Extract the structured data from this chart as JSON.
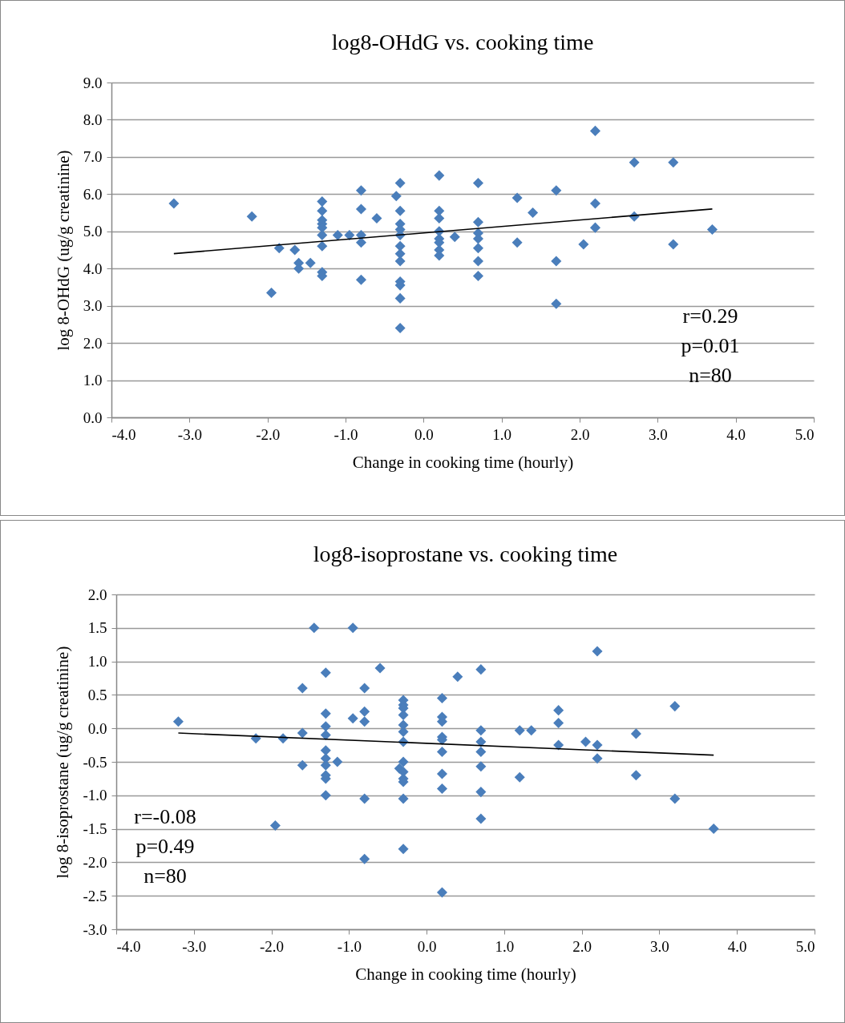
{
  "chart_data": [
    {
      "type": "scatter",
      "title": "log8-OHdG vs. cooking time",
      "xlabel": "Change in cooking time (hourly)",
      "ylabel": "log 8-OHdG (ug/g creatinine)",
      "xlim": [
        -4,
        5
      ],
      "xticks": [
        {
          "value": -4,
          "label": "-4.0"
        },
        {
          "value": -3,
          "label": "-3.0"
        },
        {
          "value": -2,
          "label": "-2.0"
        },
        {
          "value": -1,
          "label": "-1.0"
        },
        {
          "value": 0,
          "label": "0.0"
        },
        {
          "value": 1,
          "label": "1.0"
        },
        {
          "value": 2,
          "label": "2.0"
        },
        {
          "value": 3,
          "label": "3.0"
        },
        {
          "value": 4,
          "label": "4.0"
        },
        {
          "value": 5,
          "label": "5.0"
        }
      ],
      "ylim": [
        0,
        9
      ],
      "yticks": [
        {
          "value": 0,
          "label": "0.0"
        },
        {
          "value": 1,
          "label": "1.0"
        },
        {
          "value": 2,
          "label": "2.0"
        },
        {
          "value": 3,
          "label": "3.0"
        },
        {
          "value": 4,
          "label": "4.0"
        },
        {
          "value": 5,
          "label": "5.0"
        },
        {
          "value": 6,
          "label": "6.0"
        },
        {
          "value": 7,
          "label": "7.0"
        },
        {
          "value": 8,
          "label": "8.0"
        },
        {
          "value": 9,
          "label": "9.0"
        }
      ],
      "grid": "y",
      "annotations": [
        "r=0.29",
        "p=0.01",
        "n=80"
      ],
      "series": [
        {
          "marker": "diamond",
          "color": "#4a7ebb",
          "x": [
            -3.2,
            -2.2,
            -1.85,
            -1.95,
            -1.65,
            -1.6,
            -1.6,
            -1.45,
            -1.3,
            -1.3,
            -1.3,
            -1.3,
            -1.3,
            -1.3,
            -1.3,
            -1.3,
            -1.3,
            -1.1,
            -0.95,
            -0.8,
            -0.8,
            -0.8,
            -0.8,
            -0.8,
            -0.6,
            -0.35,
            -0.3,
            -0.3,
            -0.3,
            -0.3,
            -0.3,
            -0.3,
            -0.3,
            -0.3,
            -0.3,
            -0.3,
            -0.3,
            -0.3,
            0.2,
            0.2,
            0.2,
            0.2,
            0.2,
            0.2,
            0.2,
            0.2,
            0.4,
            0.7,
            0.7,
            0.7,
            0.7,
            0.7,
            0.7,
            0.7,
            1.2,
            1.2,
            1.4,
            1.7,
            1.7,
            1.7,
            2.05,
            2.2,
            2.2,
            2.2,
            2.7,
            2.7,
            3.2,
            3.2,
            3.7
          ],
          "values": [
            5.75,
            5.4,
            4.55,
            3.35,
            4.5,
            4.15,
            4.0,
            4.15,
            5.8,
            5.55,
            5.3,
            5.2,
            5.1,
            4.9,
            4.6,
            3.9,
            3.8,
            4.9,
            4.9,
            6.1,
            5.6,
            4.9,
            4.7,
            3.7,
            5.35,
            5.95,
            6.3,
            5.55,
            5.2,
            5.05,
            4.9,
            4.6,
            4.4,
            4.2,
            3.65,
            3.55,
            3.2,
            2.4,
            6.5,
            5.55,
            5.35,
            5.0,
            4.8,
            4.7,
            4.5,
            4.35,
            4.85,
            6.3,
            5.25,
            4.95,
            4.8,
            4.55,
            4.2,
            3.8,
            5.9,
            4.7,
            5.5,
            6.1,
            4.2,
            3.05,
            4.65,
            7.7,
            5.75,
            5.1,
            6.85,
            5.4,
            6.85,
            4.65,
            5.05
          ]
        },
        {
          "type": "line",
          "marker": "none",
          "color": "#000000",
          "x": [
            -3.2,
            3.7
          ],
          "values": [
            4.4,
            5.6
          ]
        }
      ]
    },
    {
      "type": "scatter",
      "title": "log8-isoprostane vs. cooking time",
      "xlabel": "Change in cooking time (hourly)",
      "ylabel": "log 8-isoprostane (ug/g creatinine)",
      "xlim": [
        -4,
        5
      ],
      "xticks": [
        {
          "value": -4,
          "label": "-4.0"
        },
        {
          "value": -3,
          "label": "-3.0"
        },
        {
          "value": -2,
          "label": "-2.0"
        },
        {
          "value": -1,
          "label": "-1.0"
        },
        {
          "value": 0,
          "label": "0.0"
        },
        {
          "value": 1,
          "label": "1.0"
        },
        {
          "value": 2,
          "label": "2.0"
        },
        {
          "value": 3,
          "label": "3.0"
        },
        {
          "value": 4,
          "label": "4.0"
        },
        {
          "value": 5,
          "label": "5.0"
        }
      ],
      "ylim": [
        -3,
        2
      ],
      "yticks": [
        {
          "value": -3,
          "label": "-3.0"
        },
        {
          "value": -2.5,
          "label": "-2.5"
        },
        {
          "value": -2,
          "label": "-2.0"
        },
        {
          "value": -1.5,
          "label": "-1.5"
        },
        {
          "value": -1,
          "label": "-1.0"
        },
        {
          "value": -0.5,
          "label": "-0.5"
        },
        {
          "value": 0,
          "label": "0.0"
        },
        {
          "value": 0.5,
          "label": "0.5"
        },
        {
          "value": 1,
          "label": "1.0"
        },
        {
          "value": 1.5,
          "label": "1.5"
        },
        {
          "value": 2,
          "label": "2.0"
        }
      ],
      "grid": "y",
      "annotations": [
        "r=-0.08",
        "p=0.49",
        "n=80"
      ],
      "series": [
        {
          "marker": "diamond",
          "color": "#4a7ebb",
          "x": [
            -3.2,
            -2.2,
            -1.85,
            -1.95,
            -1.6,
            -1.6,
            -1.6,
            -1.45,
            -1.3,
            -1.3,
            -1.3,
            -1.3,
            -1.3,
            -1.3,
            -1.3,
            -1.3,
            -1.3,
            -1.3,
            -1.15,
            -0.95,
            -0.95,
            -0.8,
            -0.8,
            -0.8,
            -0.8,
            -0.8,
            -0.6,
            -0.35,
            -0.3,
            -0.3,
            -0.3,
            -0.3,
            -0.3,
            -0.3,
            -0.3,
            -0.3,
            -0.3,
            -0.3,
            -0.3,
            -0.3,
            -0.3,
            0.2,
            0.2,
            0.2,
            0.2,
            0.2,
            0.2,
            0.2,
            0.2,
            0.2,
            0.4,
            0.7,
            0.7,
            0.7,
            0.7,
            0.7,
            0.7,
            0.7,
            1.2,
            1.2,
            1.35,
            1.7,
            1.7,
            1.7,
            2.05,
            2.2,
            2.2,
            2.2,
            2.7,
            2.7,
            3.2,
            3.2,
            3.7
          ],
          "values": [
            0.1,
            -0.15,
            -0.15,
            -1.45,
            0.6,
            -0.07,
            -0.55,
            1.5,
            0.83,
            0.22,
            0.03,
            -0.1,
            -0.33,
            -0.45,
            -0.55,
            -0.7,
            -0.75,
            -1.0,
            -0.5,
            1.5,
            0.15,
            0.6,
            0.25,
            0.1,
            -1.05,
            -1.95,
            0.9,
            -0.6,
            0.42,
            0.35,
            0.3,
            0.2,
            0.05,
            -0.05,
            -0.2,
            -0.5,
            -0.65,
            -0.75,
            -0.8,
            -1.05,
            -1.8,
            0.45,
            0.17,
            0.1,
            -0.13,
            -0.17,
            -0.35,
            -0.68,
            -0.9,
            -2.45,
            0.77,
            0.88,
            -0.03,
            -0.2,
            -0.35,
            -0.57,
            -0.95,
            -1.35,
            -0.03,
            -0.73,
            -0.03,
            0.27,
            0.08,
            -0.25,
            -0.2,
            1.15,
            -0.25,
            -0.45,
            -0.08,
            -0.7,
            0.33,
            -1.05,
            -1.5
          ]
        },
        {
          "type": "line",
          "marker": "none",
          "color": "#000000",
          "x": [
            -3.2,
            3.7
          ],
          "values": [
            -0.07,
            -0.4
          ]
        }
      ]
    }
  ]
}
